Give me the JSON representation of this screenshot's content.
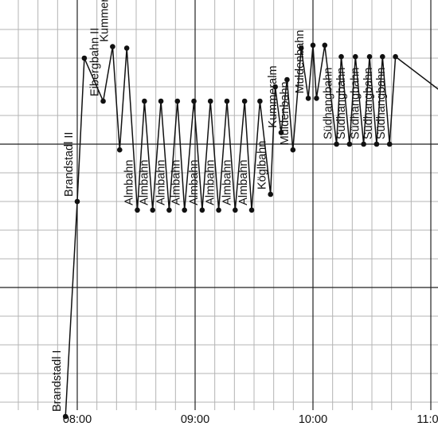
{
  "chart_data": {
    "type": "line",
    "title": "",
    "xlabel": "",
    "ylabel": "",
    "x_unit": "time of day (decimal hours)",
    "y_unit": "elevation (m)",
    "xlim": [
      7.5,
      11.1
    ],
    "ylim": [
      1000,
      2450
    ],
    "grid": true,
    "x_major_step": 1,
    "x_minor_step": 0.1667,
    "y_major_step": 500,
    "y_minor_step": 100,
    "x_ticks": [
      {
        "value": 8,
        "label": "08:00"
      },
      {
        "value": 9,
        "label": "09:00"
      },
      {
        "value": 10,
        "label": "10:00"
      },
      {
        "value": 11,
        "label": "11:00"
      }
    ],
    "series": [
      {
        "points": [
          {
            "x": 7.9,
            "y": 1050,
            "label": "Brandstadl I"
          },
          {
            "x": 8.0,
            "y": 1800,
            "label": "Brandstadl II"
          },
          {
            "x": 8.06,
            "y": 2300,
            "label": ""
          },
          {
            "x": 8.22,
            "y": 2150,
            "label": "Eibergbahn II"
          },
          {
            "x": 8.3,
            "y": 2340,
            "label": "Kummeralm"
          },
          {
            "x": 8.36,
            "y": 1980,
            "label": ""
          },
          {
            "x": 8.42,
            "y": 2335,
            "label": ""
          },
          {
            "x": 8.51,
            "y": 1770,
            "label": "Almbahn"
          },
          {
            "x": 8.57,
            "y": 2150,
            "label": ""
          },
          {
            "x": 8.64,
            "y": 1770,
            "label": "Almbahn"
          },
          {
            "x": 8.71,
            "y": 2150,
            "label": ""
          },
          {
            "x": 8.78,
            "y": 1770,
            "label": "Almbahn"
          },
          {
            "x": 8.85,
            "y": 2150,
            "label": ""
          },
          {
            "x": 8.91,
            "y": 1770,
            "label": "Almbahn"
          },
          {
            "x": 8.99,
            "y": 2150,
            "label": ""
          },
          {
            "x": 9.06,
            "y": 1770,
            "label": "Almbahn"
          },
          {
            "x": 9.13,
            "y": 2150,
            "label": ""
          },
          {
            "x": 9.2,
            "y": 1770,
            "label": "Almbahn"
          },
          {
            "x": 9.27,
            "y": 2150,
            "label": ""
          },
          {
            "x": 9.34,
            "y": 1770,
            "label": "Almbahn"
          },
          {
            "x": 9.42,
            "y": 2150,
            "label": ""
          },
          {
            "x": 9.48,
            "y": 1770,
            "label": "Almbahn"
          },
          {
            "x": 9.55,
            "y": 2150,
            "label": ""
          },
          {
            "x": 9.64,
            "y": 1825,
            "label": "Köglbahn"
          },
          {
            "x": 9.68,
            "y": 2200,
            "label": ""
          },
          {
            "x": 9.73,
            "y": 2040,
            "label": "Kummeralm"
          },
          {
            "x": 9.78,
            "y": 2225,
            "label": ""
          },
          {
            "x": 9.83,
            "y": 1980,
            "label": "Muldenbahn"
          },
          {
            "x": 9.9,
            "y": 2335,
            "label": ""
          },
          {
            "x": 9.96,
            "y": 2160,
            "label": "Muldenbahn"
          },
          {
            "x": 10.0,
            "y": 2345,
            "label": ""
          },
          {
            "x": 10.03,
            "y": 2160,
            "label": ""
          },
          {
            "x": 10.1,
            "y": 2345,
            "label": ""
          },
          {
            "x": 10.2,
            "y": 2000,
            "label": "Südhangbahn"
          },
          {
            "x": 10.24,
            "y": 2305,
            "label": ""
          },
          {
            "x": 10.31,
            "y": 2000,
            "label": "Südhangbahn"
          },
          {
            "x": 10.36,
            "y": 2305,
            "label": ""
          },
          {
            "x": 10.43,
            "y": 2000,
            "label": "Südhangbahn"
          },
          {
            "x": 10.48,
            "y": 2305,
            "label": ""
          },
          {
            "x": 10.54,
            "y": 2000,
            "label": "Südhangbahn"
          },
          {
            "x": 10.59,
            "y": 2305,
            "label": ""
          },
          {
            "x": 10.65,
            "y": 2000,
            "label": "Südhangbahn"
          },
          {
            "x": 10.7,
            "y": 2305,
            "label": ""
          },
          {
            "x": 11.1,
            "y": 2180,
            "label": ""
          }
        ]
      }
    ]
  }
}
